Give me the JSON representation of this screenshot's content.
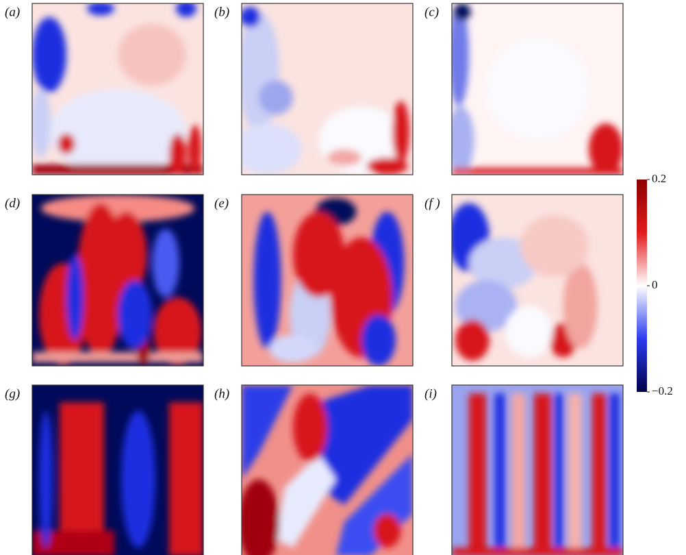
{
  "panels": [
    {
      "label": "(a)"
    },
    {
      "label": "(b)"
    },
    {
      "label": "(c)"
    },
    {
      "label": "(d)"
    },
    {
      "label": "(e)"
    },
    {
      "label": "(f )"
    },
    {
      "label": "(g)"
    },
    {
      "label": "(h)"
    },
    {
      "label": "(i)"
    }
  ],
  "colorbar": {
    "lim": [
      -0.2,
      0.2
    ],
    "ticks": [
      0.2,
      0,
      {
        "value": -0.2,
        "label": "−0.2"
      }
    ]
  }
}
